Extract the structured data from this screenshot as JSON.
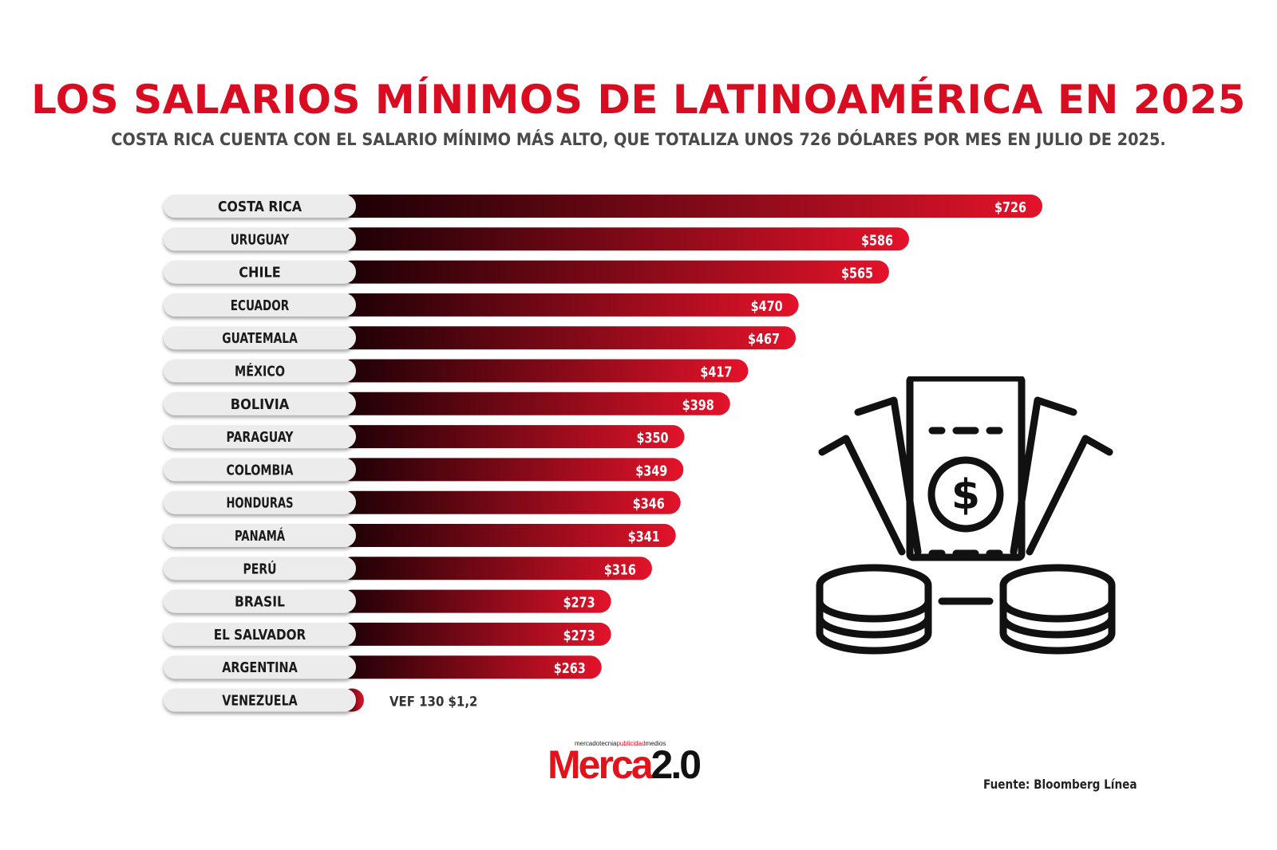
{
  "header": {
    "title": "LOS SALARIOS MÍNIMOS DE LATINOAMÉRICA EN 2025",
    "subtitle": "COSTA RICA CUENTA CON EL SALARIO MÍNIMO MÁS ALTO, QUE TOTALIZA UNOS 726 DÓLARES POR MES EN JULIO DE 2025."
  },
  "chart_data": {
    "type": "bar",
    "orientation": "horizontal",
    "categories": [
      "COSTA RICA",
      "URUGUAY",
      "CHILE",
      "ECUADOR",
      "GUATEMALA",
      "MÉXICO",
      "BOLIVIA",
      "PARAGUAY",
      "COLOMBIA",
      "HONDURAS",
      "PANAMÁ",
      "PERÚ",
      "BRASIL",
      "EL SALVADOR",
      "ARGENTINA",
      "VENEZUELA"
    ],
    "values": [
      726,
      586,
      565,
      470,
      467,
      417,
      398,
      350,
      349,
      346,
      341,
      316,
      273,
      273,
      263,
      1.2
    ],
    "labels": [
      "$726",
      "$586",
      "$565",
      "$470",
      "$467",
      "$417",
      "$398",
      "$350",
      "$349",
      "$346",
      "$341",
      "$316",
      "$273",
      "$273",
      "$263",
      "VEF 130 $1,2"
    ],
    "colors": {
      "bar_start": "#1a0004",
      "bar_end": "#e3132a",
      "pill": "#ececec"
    }
  },
  "brand": {
    "logo_tagline_a": "mercadotecnia",
    "logo_tagline_b": "publicidad",
    "logo_tagline_c": "medios",
    "logo_main": "Merca",
    "logo_version": "2.0"
  },
  "footer": {
    "source": "Fuente: Bloomberg Línea"
  },
  "icon": "money-cash-coins-icon"
}
